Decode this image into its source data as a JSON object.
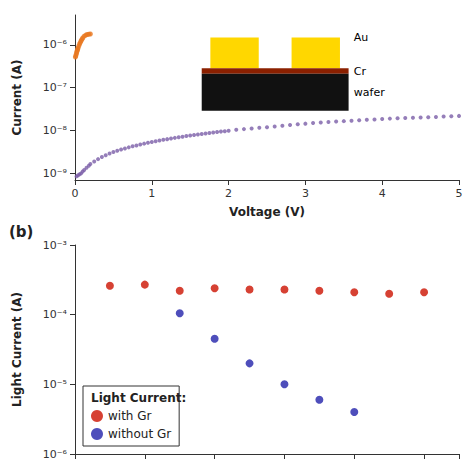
{
  "chart_data": [
    {
      "type": "scatter",
      "log": "y",
      "grid": false,
      "xlabel": "Voltage (V)",
      "ylabel": "Current (A)",
      "xlim": [
        0,
        5
      ],
      "xticks": [
        0,
        1,
        2,
        3,
        4,
        5
      ],
      "ylim": [
        7e-10,
        5e-06
      ],
      "yticks": [
        {
          "value": 1e-09,
          "label": "10⁻⁹"
        },
        {
          "value": 1e-08,
          "label": "10⁻⁸"
        },
        {
          "value": 1e-07,
          "label": "10⁻⁷"
        },
        {
          "value": 1e-06,
          "label": "10⁻⁶"
        }
      ],
      "series": [
        {
          "color": "#7B5EA7",
          "x": [
            0.02,
            0.04,
            0.06,
            0.08,
            0.1,
            0.12,
            0.15,
            0.18,
            0.2,
            0.25,
            0.3,
            0.35,
            0.4,
            0.45,
            0.5,
            0.55,
            0.6,
            0.65,
            0.7,
            0.75,
            0.8,
            0.85,
            0.9,
            0.95,
            1.0,
            1.05,
            1.1,
            1.15,
            1.2,
            1.25,
            1.3,
            1.35,
            1.4,
            1.45,
            1.5,
            1.55,
            1.6,
            1.65,
            1.7,
            1.75,
            1.8,
            1.85,
            1.9,
            1.95,
            2.0,
            2.1,
            2.2,
            2.3,
            2.4,
            2.5,
            2.6,
            2.7,
            2.8,
            2.9,
            3.0,
            3.1,
            3.2,
            3.3,
            3.4,
            3.5,
            3.6,
            3.7,
            3.8,
            3.9,
            4.0,
            4.1,
            4.2,
            4.3,
            4.4,
            4.5,
            4.6,
            4.7,
            4.8,
            4.9,
            5.0
          ],
          "values": [
            8.5e-10,
            9e-10,
            9.5e-10,
            1e-09,
            1.1e-09,
            1.2e-09,
            1.35e-09,
            1.5e-09,
            1.65e-09,
            1.9e-09,
            2.15e-09,
            2.4e-09,
            2.65e-09,
            2.9e-09,
            3.15e-09,
            3.38e-09,
            3.6e-09,
            3.82e-09,
            4.05e-09,
            4.28e-09,
            4.5e-09,
            4.72e-09,
            4.95e-09,
            5.18e-09,
            5.4e-09,
            5.62e-09,
            5.85e-09,
            6.07e-09,
            6.3e-09,
            6.52e-09,
            6.75e-09,
            6.98e-09,
            7.2e-09,
            7.42e-09,
            7.65e-09,
            7.87e-09,
            8.1e-09,
            8.32e-09,
            8.55e-09,
            8.77e-09,
            9e-09,
            9.22e-09,
            9.45e-09,
            9.67e-09,
            9.9e-09,
            1.05e-08,
            1.08e-08,
            1.12e-08,
            1.16e-08,
            1.2e-08,
            1.25e-08,
            1.3e-08,
            1.35e-08,
            1.4e-08,
            1.45e-08,
            1.5e-08,
            1.55e-08,
            1.58e-08,
            1.62e-08,
            1.66e-08,
            1.7e-08,
            1.74e-08,
            1.78e-08,
            1.82e-08,
            1.86e-08,
            1.9e-08,
            1.93e-08,
            1.96e-08,
            1.99e-08,
            2.02e-08,
            2.05e-08,
            2.08e-08,
            2.12e-08,
            2.16e-08,
            2.2e-08
          ]
        },
        {
          "color": "#E87820",
          "x": [
            0.005,
            0.01,
            0.015,
            0.02,
            0.025,
            0.03,
            0.035,
            0.04,
            0.05,
            0.06,
            0.07,
            0.08,
            0.09,
            0.1,
            0.12,
            0.14,
            0.16,
            0.18,
            0.2
          ],
          "values": [
            5.2e-07,
            5.5e-07,
            6e-07,
            6.5e-07,
            7e-07,
            7.5e-07,
            8e-07,
            8.5e-07,
            9.5e-07,
            1.05e-06,
            1.15e-06,
            1.25e-06,
            1.35e-06,
            1.45e-06,
            1.6e-06,
            1.7e-06,
            1.75e-06,
            1.78e-06,
            1.8e-06
          ]
        }
      ],
      "annotations": [
        {
          "text": "Au",
          "color": "#FFD700"
        },
        {
          "text": "Cr",
          "color": "#8B2000"
        },
        {
          "text": "wafer",
          "color": "#111111"
        }
      ]
    },
    {
      "type": "scatter",
      "log": "y",
      "grid": false,
      "title": "(b)",
      "ylabel": "Light Current (A)",
      "xlim": [
        0,
        11
      ],
      "xticks": [
        0,
        2,
        4,
        6,
        8,
        10
      ],
      "ylim": [
        1e-06,
        0.001
      ],
      "yticks": [
        {
          "value": 1e-06,
          "label": "10⁻⁶"
        },
        {
          "value": 1e-05,
          "label": "10⁻⁵"
        },
        {
          "value": 0.0001,
          "label": "10⁻⁴"
        },
        {
          "value": 0.001,
          "label": "10⁻³"
        }
      ],
      "tick_labels": "y",
      "legend": "lower left",
      "legend_title": "Light Current:",
      "series": [
        {
          "name": "with Gr",
          "color": "#CC1100",
          "x": [
            1,
            2,
            3,
            4,
            5,
            6,
            7,
            8,
            9,
            10
          ],
          "values": [
            0.00026,
            0.00027,
            0.00022,
            0.00024,
            0.00023,
            0.00023,
            0.00022,
            0.00021,
            0.0002,
            0.00021
          ]
        },
        {
          "name": "without Gr",
          "color": "#2222AA",
          "x": [
            3,
            4,
            5,
            6,
            7,
            8
          ],
          "values": [
            0.000105,
            4.5e-05,
            2e-05,
            1e-05,
            6e-06,
            4e-06
          ]
        }
      ]
    }
  ]
}
